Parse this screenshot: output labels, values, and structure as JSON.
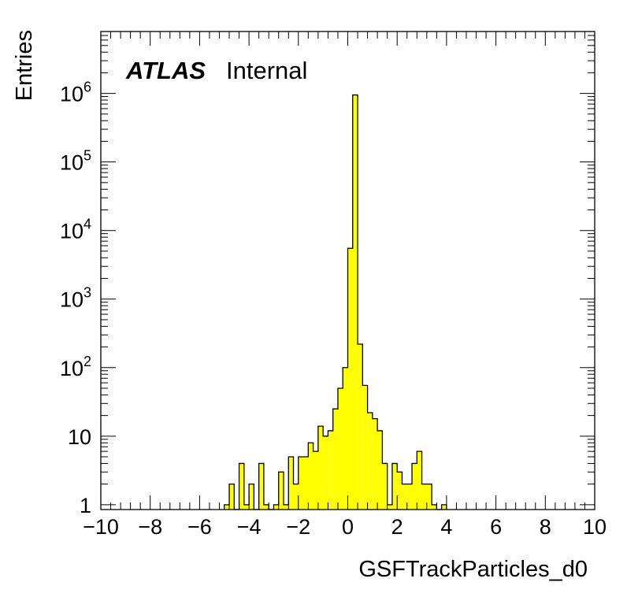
{
  "chart_data": {
    "type": "bar",
    "title": "",
    "xlabel": "GSFTrackParticles_d0",
    "ylabel": "Entries",
    "label_bold": "ATLAS",
    "label_status": "Internal",
    "xlim": [
      -10,
      10
    ],
    "ylim": [
      0.85,
      8000000
    ],
    "log_y": true,
    "bin_width": 0.2,
    "fill_color": "#ffff00",
    "line_color": "#000000",
    "x_tick_labels": [
      "−10",
      "−8",
      "−6",
      "−4",
      "−2",
      "0",
      "2",
      "4",
      "6",
      "8",
      "10"
    ],
    "y_tick_labels": [
      {
        "value": 1,
        "base": "1",
        "exp": ""
      },
      {
        "value": 10,
        "base": "10",
        "exp": ""
      },
      {
        "value": 100,
        "base": "10",
        "exp": "2"
      },
      {
        "value": 1000,
        "base": "10",
        "exp": "3"
      },
      {
        "value": 10000,
        "base": "10",
        "exp": "4"
      },
      {
        "value": 100000,
        "base": "10",
        "exp": "5"
      },
      {
        "value": 1000000,
        "base": "10",
        "exp": "6"
      }
    ],
    "bins": [
      {
        "x": -5.0,
        "y": 1
      },
      {
        "x": -4.8,
        "y": 2
      },
      {
        "x": -4.6,
        "y": 0
      },
      {
        "x": -4.4,
        "y": 4
      },
      {
        "x": -4.2,
        "y": 1
      },
      {
        "x": -4.0,
        "y": 2
      },
      {
        "x": -3.8,
        "y": 0
      },
      {
        "x": -3.6,
        "y": 4
      },
      {
        "x": -3.4,
        "y": 1
      },
      {
        "x": -3.2,
        "y": 0
      },
      {
        "x": -3.0,
        "y": 1
      },
      {
        "x": -2.8,
        "y": 3
      },
      {
        "x": -2.6,
        "y": 1
      },
      {
        "x": -2.4,
        "y": 5
      },
      {
        "x": -2.2,
        "y": 2
      },
      {
        "x": -2.0,
        "y": 5
      },
      {
        "x": -1.8,
        "y": 5
      },
      {
        "x": -1.6,
        "y": 8
      },
      {
        "x": -1.4,
        "y": 6
      },
      {
        "x": -1.2,
        "y": 14
      },
      {
        "x": -1.0,
        "y": 10
      },
      {
        "x": -0.8,
        "y": 12
      },
      {
        "x": -0.6,
        "y": 25
      },
      {
        "x": -0.4,
        "y": 50
      },
      {
        "x": -0.2,
        "y": 100
      },
      {
        "x": 0.0,
        "y": 5500
      },
      {
        "x": 0.2,
        "y": 950000
      },
      {
        "x": 0.4,
        "y": 220
      },
      {
        "x": 0.6,
        "y": 55
      },
      {
        "x": 0.8,
        "y": 22
      },
      {
        "x": 1.0,
        "y": 18
      },
      {
        "x": 1.2,
        "y": 12
      },
      {
        "x": 1.4,
        "y": 4
      },
      {
        "x": 1.6,
        "y": 1
      },
      {
        "x": 1.8,
        "y": 4
      },
      {
        "x": 2.0,
        "y": 3
      },
      {
        "x": 2.2,
        "y": 2
      },
      {
        "x": 2.4,
        "y": 2
      },
      {
        "x": 2.6,
        "y": 4
      },
      {
        "x": 2.8,
        "y": 6
      },
      {
        "x": 3.0,
        "y": 2
      },
      {
        "x": 3.2,
        "y": 2
      },
      {
        "x": 3.4,
        "y": 1
      },
      {
        "x": 3.6,
        "y": 0
      },
      {
        "x": 3.8,
        "y": 1
      }
    ]
  }
}
